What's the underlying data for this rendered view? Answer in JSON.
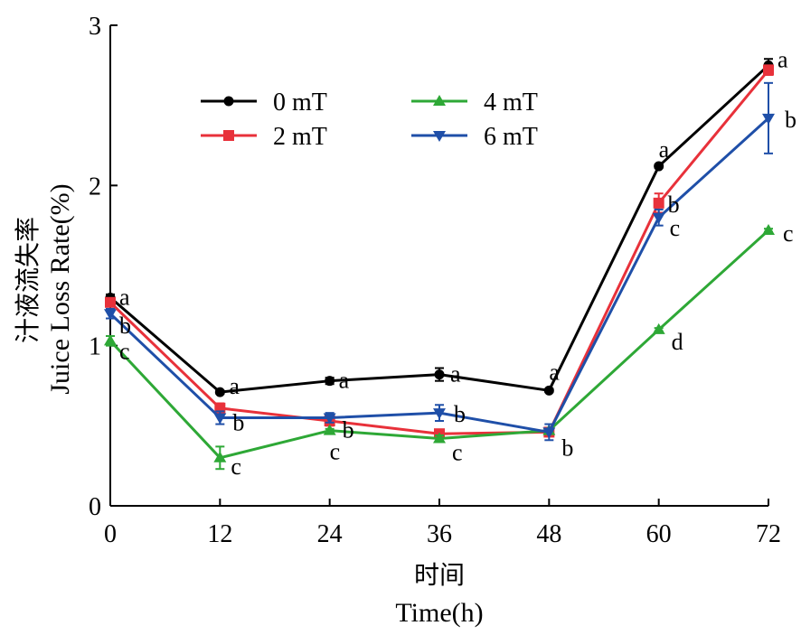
{
  "chart_data": {
    "type": "line",
    "title": "",
    "xlabel_cn": "时间",
    "xlabel": "Time(h)",
    "ylabel_cn": "汁液流失率",
    "ylabel": "Juice Loss Rate(%)",
    "xlim": [
      0,
      72
    ],
    "ylim": [
      0,
      3
    ],
    "x_ticks": [
      "0",
      "12",
      "24",
      "36",
      "48",
      "60",
      "72"
    ],
    "y_ticks": [
      "0",
      "1",
      "2",
      "3"
    ],
    "x": [
      0,
      12,
      24,
      36,
      48,
      60,
      72
    ],
    "grid": false,
    "legend_position": "top-left",
    "series": [
      {
        "name": "0 mT",
        "color": "#000000",
        "marker": "circle",
        "values": [
          1.3,
          0.71,
          0.78,
          0.82,
          0.72,
          2.12,
          2.75
        ],
        "errors": [
          0.02,
          0.01,
          0.02,
          0.04,
          0.01,
          0.01,
          0.04
        ],
        "letters": [
          "a",
          "a",
          "a",
          "a",
          "a",
          "a",
          "a"
        ]
      },
      {
        "name": "2 mT",
        "color": "#e8313a",
        "marker": "square",
        "values": [
          1.27,
          0.61,
          0.53,
          0.45,
          0.46,
          1.89,
          2.72
        ],
        "errors": [
          0.02,
          0.03,
          0.03,
          0.02,
          0.02,
          0.06,
          0.03
        ],
        "letters": [
          "",
          "",
          "",
          "",
          "",
          "b",
          ""
        ]
      },
      {
        "name": "4 mT",
        "color": "#2ea836",
        "marker": "triangle-up",
        "values": [
          1.03,
          0.3,
          0.47,
          0.42,
          0.47,
          1.1,
          1.72
        ],
        "errors": [
          0.03,
          0.07,
          0.01,
          0.02,
          0.01,
          0.01,
          0.01
        ],
        "letters": [
          "c",
          "c",
          "c",
          "c",
          "",
          "d",
          "c"
        ]
      },
      {
        "name": "6 mT",
        "color": "#1f4fa8",
        "marker": "triangle-down",
        "values": [
          1.2,
          0.55,
          0.55,
          0.58,
          0.46,
          1.8,
          2.42
        ],
        "errors": [
          0.03,
          0.04,
          0.03,
          0.05,
          0.05,
          0.05,
          0.22
        ],
        "letters": [
          "b",
          "b",
          "b",
          "b",
          "b",
          "c",
          "b"
        ]
      }
    ]
  }
}
